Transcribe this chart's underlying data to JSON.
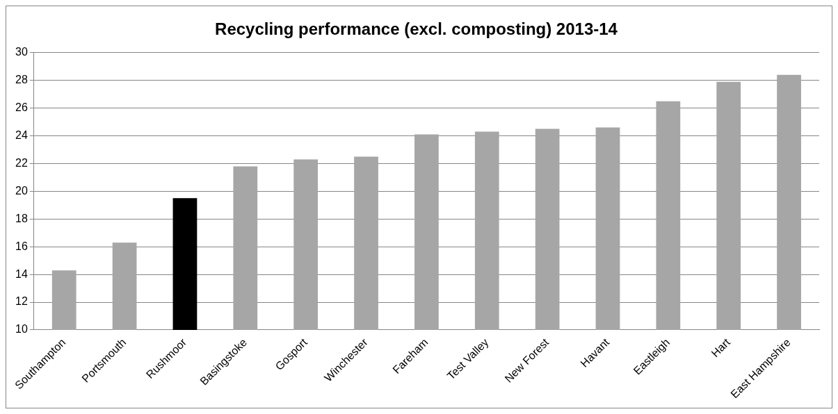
{
  "chart_data": {
    "type": "bar",
    "title": "Recycling performance (excl. composting) 2013-14",
    "categories": [
      "Southampton",
      "Portsmouth",
      "Rushmoor",
      "Basingstoke",
      "Gosport",
      "Winchester",
      "Fareham",
      "Test Valley",
      "New Forest",
      "Havant",
      "Eastleigh",
      "Hart",
      "East Hampshire"
    ],
    "values": [
      14.3,
      16.3,
      19.5,
      21.8,
      22.3,
      22.5,
      24.1,
      24.3,
      24.5,
      24.6,
      26.5,
      27.9,
      28.4
    ],
    "colors": [
      "#a6a6a6",
      "#a6a6a6",
      "#000000",
      "#a6a6a6",
      "#a6a6a6",
      "#a6a6a6",
      "#a6a6a6",
      "#a6a6a6",
      "#a6a6a6",
      "#a6a6a6",
      "#a6a6a6",
      "#a6a6a6",
      "#a6a6a6"
    ],
    "ylim": [
      10,
      30
    ],
    "yticks": [
      10,
      12,
      14,
      16,
      18,
      20,
      22,
      24,
      26,
      28,
      30
    ],
    "grid": "y",
    "legend": false
  }
}
